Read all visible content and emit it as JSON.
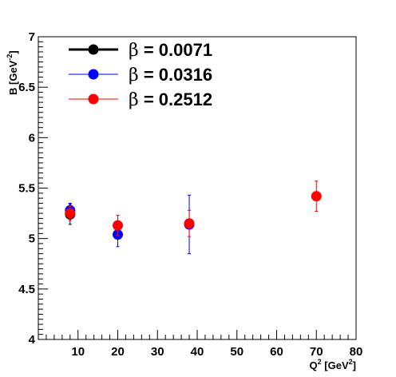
{
  "chart_data": {
    "type": "scatter",
    "xlabel": "Q",
    "xlabel_sup": "2",
    "xlabel_unit_open": " [GeV",
    "xlabel_unit_sup": "2",
    "xlabel_unit_close": "]",
    "ylabel": "B [GeV",
    "ylabel_sup": "-2",
    "ylabel_close": "]",
    "xlim": [
      0,
      80
    ],
    "ylim": [
      4,
      7
    ],
    "x_ticks": [
      "10",
      "20",
      "30",
      "40",
      "50",
      "60",
      "70",
      "80"
    ],
    "y_ticks": [
      "4",
      "4.5",
      "5",
      "5.5",
      "6",
      "6.5",
      "7"
    ],
    "grid": false,
    "legend_position": "top-left",
    "series": [
      {
        "name": "β = 0.0071",
        "legend_symbol": "β",
        "legend_value": " = 0.0071",
        "color": "#000000",
        "points": [
          {
            "x": 8,
            "y": 5.24,
            "err": 0.1
          }
        ]
      },
      {
        "name": "β = 0.0316",
        "legend_symbol": "β",
        "legend_value": " = 0.0316",
        "color": "#0000ff",
        "points": [
          {
            "x": 8,
            "y": 5.28,
            "err": 0.07
          },
          {
            "x": 20,
            "y": 5.04,
            "err": 0.12
          },
          {
            "x": 38,
            "y": 5.14,
            "err": 0.29
          }
        ]
      },
      {
        "name": "β = 0.2512",
        "legend_symbol": "β",
        "legend_value": " = 0.2512",
        "color": "#ff0000",
        "points": [
          {
            "x": 8,
            "y": 5.25,
            "err": 0.07
          },
          {
            "x": 20,
            "y": 5.13,
            "err": 0.1
          },
          {
            "x": 38,
            "y": 5.15,
            "err": 0.13
          },
          {
            "x": 70,
            "y": 5.42,
            "err": 0.15
          }
        ]
      }
    ]
  }
}
